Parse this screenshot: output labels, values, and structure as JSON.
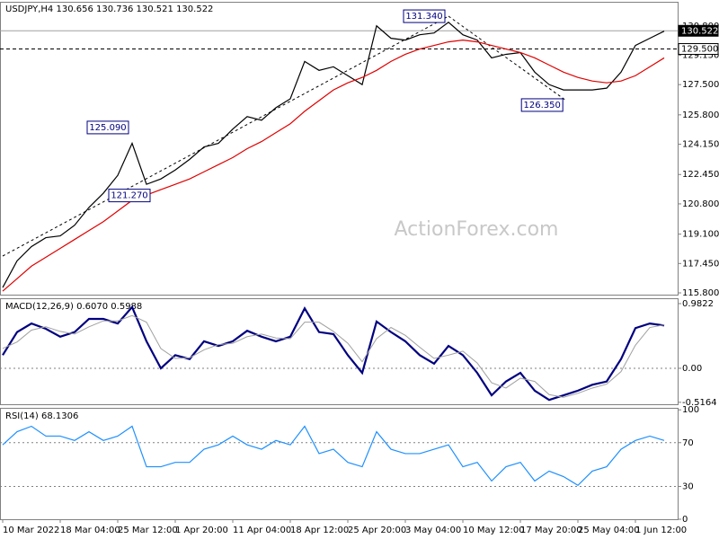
{
  "chart_data": [
    {
      "type": "line",
      "title": "USDJPY,H4 130.656 130.736 130.521 130.522",
      "watermark": "ActionForex.com",
      "ylim": [
        115.7,
        132.1
      ],
      "yticks": [
        {
          "value": 115.8,
          "label": "115.800"
        },
        {
          "value": 117.45,
          "label": "117.450"
        },
        {
          "value": 119.1,
          "label": "119.100"
        },
        {
          "value": 120.8,
          "label": "120.800"
        },
        {
          "value": 122.45,
          "label": "122.450"
        },
        {
          "value": 124.15,
          "label": "124.150"
        },
        {
          "value": 125.8,
          "label": "125.800"
        },
        {
          "value": 127.5,
          "label": "127.500"
        },
        {
          "value": 129.15,
          "label": "129.150"
        },
        {
          "value": 130.8,
          "label": "130.800"
        }
      ],
      "series": [
        {
          "name": "USDJPY",
          "color": "#000000",
          "values": [
            116.1,
            117.6,
            118.4,
            118.9,
            119.0,
            119.6,
            120.6,
            121.4,
            122.4,
            124.2,
            121.9,
            122.2,
            122.7,
            123.3,
            124.0,
            124.2,
            125.0,
            125.7,
            125.5,
            126.2,
            126.7,
            128.8,
            128.3,
            128.5,
            128.0,
            127.5,
            130.8,
            130.1,
            130.0,
            130.3,
            130.4,
            131.0,
            130.3,
            130.0,
            129.0,
            129.2,
            129.3,
            128.2,
            127.5,
            127.2,
            127.2,
            127.2,
            127.3,
            128.2,
            129.7,
            130.1,
            130.5
          ]
        },
        {
          "name": "MA",
          "color": "#e00000",
          "values": [
            115.9,
            116.6,
            117.3,
            117.8,
            118.3,
            118.8,
            119.3,
            119.8,
            120.4,
            121.0,
            121.3,
            121.6,
            121.9,
            122.2,
            122.6,
            123.0,
            123.4,
            123.9,
            124.3,
            124.8,
            125.3,
            126.0,
            126.6,
            127.2,
            127.6,
            127.9,
            128.3,
            128.8,
            129.2,
            129.5,
            129.7,
            129.9,
            130.0,
            129.9,
            129.7,
            129.5,
            129.3,
            129.0,
            128.6,
            128.2,
            127.9,
            127.7,
            127.6,
            127.7,
            128.0,
            128.5,
            129.0
          ]
        }
      ],
      "levels": [
        {
          "value": 130.522,
          "label": "130.522",
          "style": "solid",
          "color": "#a0a0a0"
        },
        {
          "value": 129.5,
          "label": "129.500",
          "style": "dashed",
          "color": "#000000"
        }
      ],
      "annotations": [
        {
          "x": 31,
          "value": 131.34,
          "label": "131.340"
        },
        {
          "x": 9,
          "value": 125.09,
          "label": "125.090"
        },
        {
          "x": 10.5,
          "value": 121.27,
          "label": "121.270"
        },
        {
          "x": 39.2,
          "value": 126.35,
          "label": "126.350"
        }
      ]
    },
    {
      "type": "line",
      "title": "MACD(12,26,9) 0.6070 0.5988",
      "ylim": [
        -0.546,
        1.05
      ],
      "yticks": [
        0.9822,
        {
          "value": 0,
          "label": "0.00"
        },
        -0.5164
      ],
      "series": [
        {
          "name": "MACD",
          "color": "#000080",
          "width": 2.2,
          "values": [
            0.2,
            0.55,
            0.68,
            0.6,
            0.48,
            0.55,
            0.75,
            0.75,
            0.68,
            0.93,
            0.41,
            0.0,
            0.2,
            0.14,
            0.41,
            0.34,
            0.41,
            0.57,
            0.48,
            0.41,
            0.48,
            0.91,
            0.55,
            0.52,
            0.2,
            -0.07,
            0.71,
            0.55,
            0.41,
            0.2,
            0.07,
            0.34,
            0.2,
            -0.07,
            -0.41,
            -0.2,
            -0.07,
            -0.34,
            -0.48,
            -0.41,
            -0.34,
            -0.25,
            -0.2,
            0.14,
            0.61,
            0.68,
            0.65
          ]
        },
        {
          "name": "Signal",
          "color": "#a0a0a0",
          "width": 1,
          "values": [
            0.3,
            0.4,
            0.58,
            0.63,
            0.56,
            0.52,
            0.63,
            0.72,
            0.72,
            0.8,
            0.7,
            0.3,
            0.15,
            0.16,
            0.28,
            0.36,
            0.38,
            0.48,
            0.52,
            0.46,
            0.45,
            0.7,
            0.7,
            0.56,
            0.38,
            0.1,
            0.45,
            0.62,
            0.5,
            0.32,
            0.15,
            0.2,
            0.26,
            0.08,
            -0.22,
            -0.3,
            -0.15,
            -0.2,
            -0.4,
            -0.44,
            -0.38,
            -0.3,
            -0.24,
            -0.05,
            0.35,
            0.62,
            0.66
          ]
        }
      ]
    },
    {
      "type": "line",
      "title": "RSI(14) 68.1306",
      "ylim": [
        0,
        101
      ],
      "yticks": [
        100,
        70,
        30,
        0
      ],
      "dashed_levels": [
        70,
        30
      ],
      "series": [
        {
          "name": "RSI",
          "color": "#1e90ff",
          "values": [
            68,
            80,
            85,
            76,
            76,
            72,
            80,
            72,
            76,
            85,
            48,
            48,
            52,
            52,
            64,
            68,
            76,
            68,
            64,
            72,
            68,
            85,
            60,
            64,
            52,
            48,
            80,
            64,
            60,
            60,
            64,
            68,
            48,
            52,
            35,
            48,
            52,
            35,
            44,
            39,
            31,
            44,
            48,
            64,
            72,
            76,
            72
          ]
        }
      ],
      "categories": [
        "10 Mar 2022",
        null,
        null,
        null,
        "18 Mar 04:00",
        null,
        null,
        null,
        "25 Mar 12:00",
        null,
        null,
        null,
        "1 Apr 20:00",
        null,
        null,
        null,
        "11 Apr 04:00",
        null,
        null,
        null,
        "18 Apr 12:00",
        null,
        null,
        null,
        "25 Apr 20:00",
        null,
        null,
        null,
        "3 May 04:00",
        null,
        null,
        null,
        "10 May 12:00",
        null,
        null,
        null,
        "17 May 20:00",
        null,
        null,
        null,
        "25 May 04:00",
        null,
        null,
        null,
        "1 Jun 12:00",
        null,
        null
      ]
    }
  ]
}
